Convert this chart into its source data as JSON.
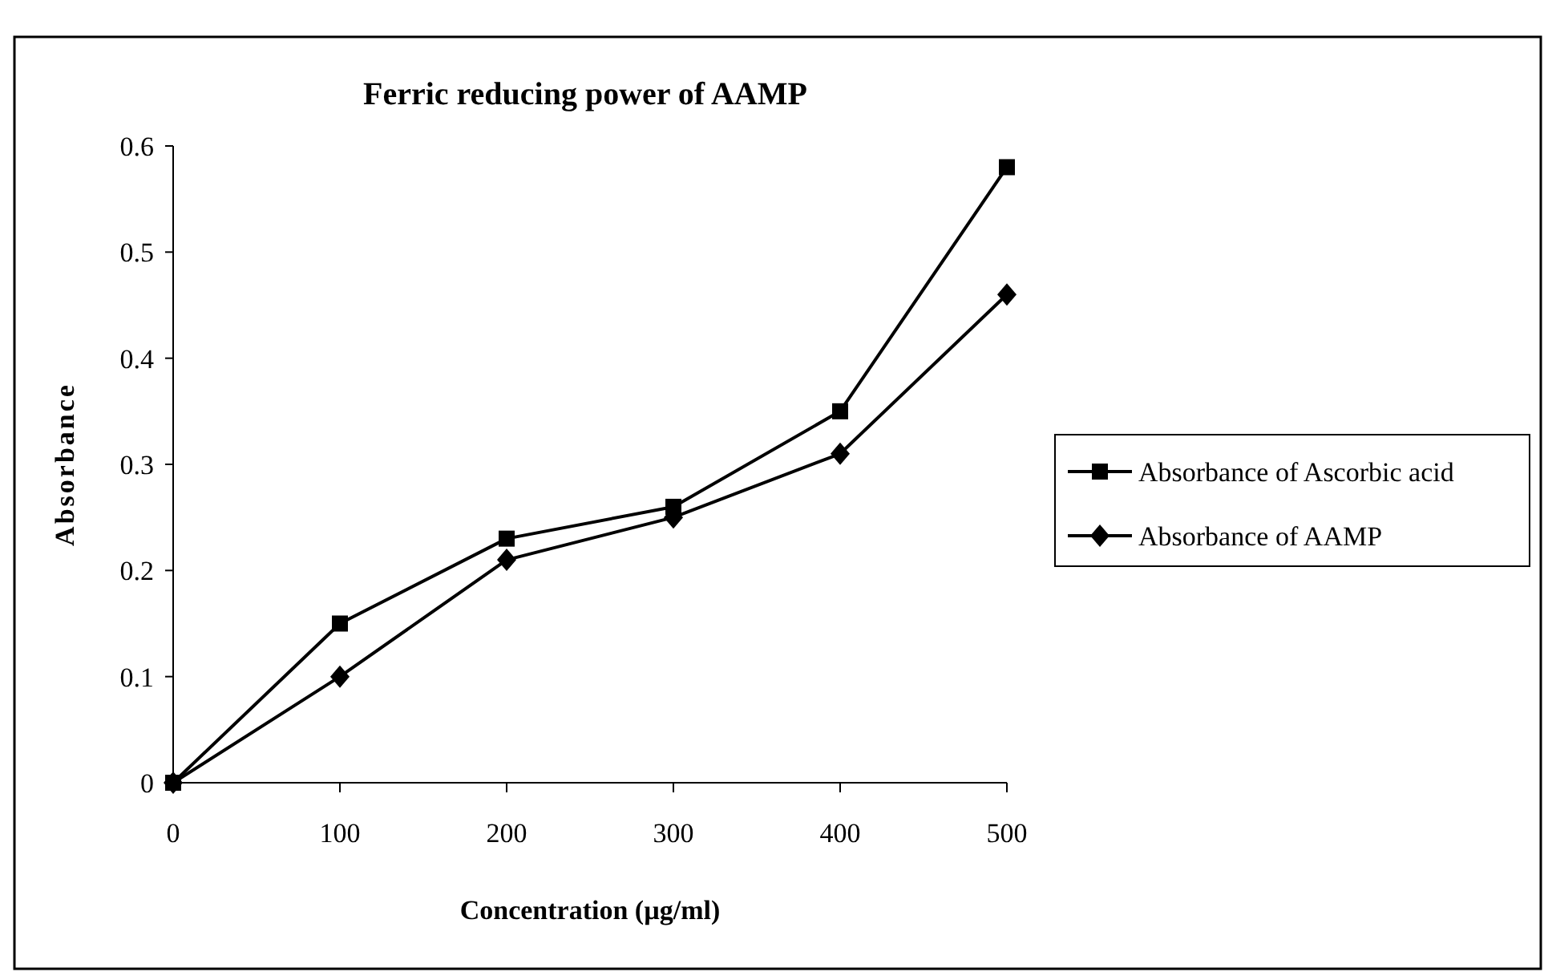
{
  "chart_data": {
    "type": "line",
    "title": "Ferric reducing power of AAMP",
    "xlabel": "Concentration (µg/ml)",
    "ylabel": "Absorbance",
    "x": [
      0,
      100,
      200,
      300,
      400,
      500
    ],
    "series": [
      {
        "name": "Absorbance of Ascorbic acid",
        "color": "#000000",
        "marker": "square",
        "values": [
          0,
          0.15,
          0.23,
          0.26,
          0.35,
          0.58
        ]
      },
      {
        "name": "Absorbance of AAMP",
        "color": "#000000",
        "marker": "diamond",
        "values": [
          0,
          0.1,
          0.21,
          0.25,
          0.31,
          0.46
        ]
      }
    ],
    "xlim": [
      0,
      500
    ],
    "xticks": [
      0,
      100,
      200,
      300,
      400,
      500
    ],
    "ylim": [
      0,
      0.6
    ],
    "yticks": [
      0,
      0.1,
      0.2,
      0.3,
      0.4,
      0.5,
      0.6
    ],
    "grid": false,
    "legend": "right"
  }
}
